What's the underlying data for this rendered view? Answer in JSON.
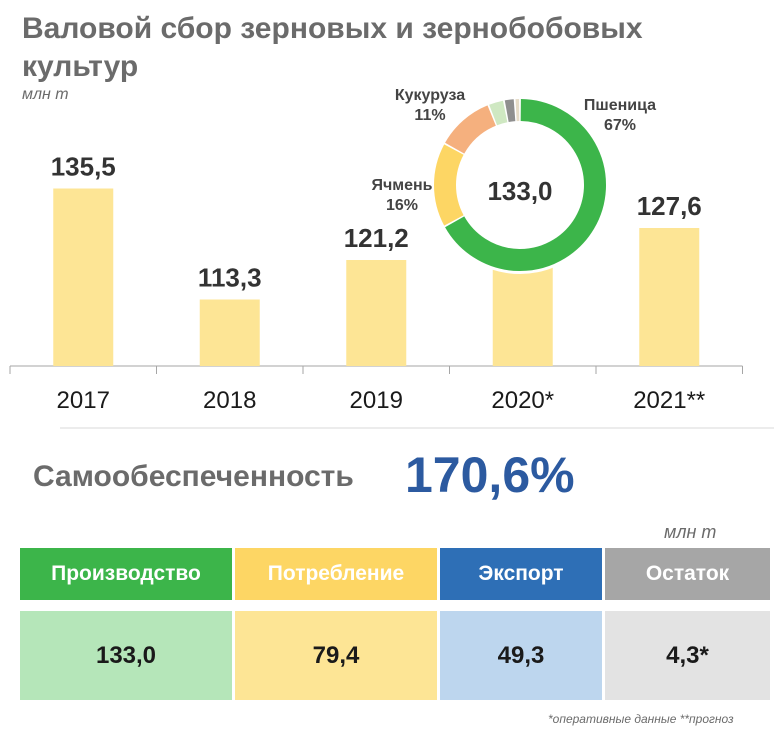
{
  "title": "Валовой сбор зерновых и зернобобовых культур",
  "unit_top": "млн т",
  "chart_data": [
    {
      "type": "bar",
      "categories": [
        "2017",
        "2018",
        "2019",
        "2020*",
        "2021**"
      ],
      "values": [
        135.5,
        113.3,
        121.2,
        133.0,
        127.6
      ],
      "value_labels": [
        "135,5",
        "113,3",
        "121,2",
        "133,0",
        "127,6"
      ],
      "ylim": [
        100,
        140
      ],
      "bar_color": "#fde595"
    },
    {
      "type": "pie",
      "style": "donut",
      "center_label": "133,0",
      "slices": [
        {
          "label": "Пшеница",
          "value": 67,
          "pct_label": "67%",
          "color": "#3cb54a"
        },
        {
          "label": "Ячмень",
          "value": 16,
          "pct_label": "16%",
          "color": "#fdd664"
        },
        {
          "label": "Кукуруза",
          "value": 11,
          "pct_label": "11%",
          "color": "#f5b07e"
        },
        {
          "label": "",
          "value": 3,
          "color": "#cfe8c2"
        },
        {
          "label": "",
          "value": 2,
          "color": "#8f8f8f"
        },
        {
          "label": "",
          "value": 1,
          "color": "#e6dcc8"
        }
      ]
    }
  ],
  "self_sufficiency": {
    "label": "Самообеспеченность",
    "value": "170,6%"
  },
  "table": {
    "unit": "млн т",
    "columns": [
      {
        "header": "Производство",
        "value": "133,0",
        "header_color": "#3cb54a",
        "cell_color": "#b5e6b9"
      },
      {
        "header": "Потребление",
        "value": "79,4",
        "header_color": "#fdd664",
        "cell_color": "#fde595"
      },
      {
        "header": "Экспорт",
        "value": "49,3",
        "header_color": "#2e6fb6",
        "cell_color": "#bdd6ee"
      },
      {
        "header": "Остаток",
        "value": "4,3*",
        "header_color": "#a6a6a6",
        "cell_color": "#e3e3e3"
      }
    ]
  },
  "footnote": "*оперативные данные   **прогноз"
}
